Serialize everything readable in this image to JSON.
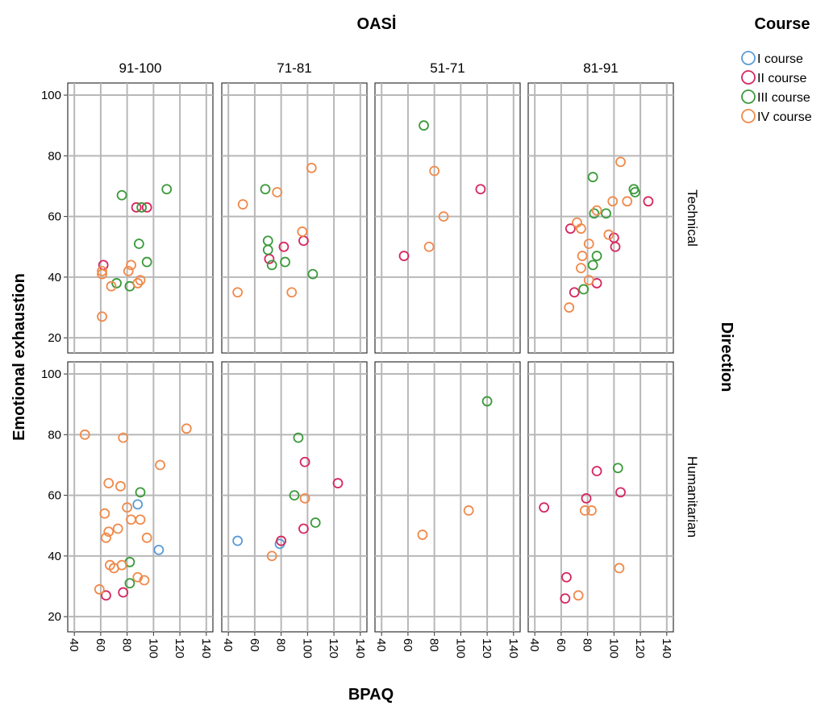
{
  "chart_data": {
    "type": "scatter",
    "title": "",
    "facet_col_title": "OASİ",
    "facet_row_title": "Direction",
    "xlabel": "BPAQ",
    "ylabel": "Emotional exhaustion",
    "columns": [
      "91-100",
      "71-81",
      "51-71",
      "81-91"
    ],
    "rows": [
      "Technical",
      "Humanitarian"
    ],
    "xlim": [
      35,
      145
    ],
    "ylim": [
      15,
      104
    ],
    "xticks": [
      40,
      60,
      80,
      100,
      120,
      140
    ],
    "yticks": [
      20,
      40,
      60,
      80,
      100
    ],
    "grid": true,
    "legend_title": "Course",
    "legend_position": "top-right",
    "series": [
      {
        "name": "I course",
        "color": "#5b9bd5"
      },
      {
        "name": "II course",
        "color": "#d6275e"
      },
      {
        "name": "III course",
        "color": "#3a9a3a"
      },
      {
        "name": "IV course",
        "color": "#f08a4b"
      }
    ],
    "points": [
      {
        "row": "Technical",
        "col": "91-100",
        "course": "II course",
        "x": 62,
        "y": 44
      },
      {
        "row": "Technical",
        "col": "91-100",
        "course": "II course",
        "x": 87,
        "y": 63
      },
      {
        "row": "Technical",
        "col": "91-100",
        "course": "II course",
        "x": 95,
        "y": 63
      },
      {
        "row": "Technical",
        "col": "91-100",
        "course": "III course",
        "x": 76,
        "y": 67
      },
      {
        "row": "Technical",
        "col": "91-100",
        "course": "III course",
        "x": 91,
        "y": 63
      },
      {
        "row": "Technical",
        "col": "91-100",
        "course": "III course",
        "x": 110,
        "y": 69
      },
      {
        "row": "Technical",
        "col": "91-100",
        "course": "III course",
        "x": 89,
        "y": 51
      },
      {
        "row": "Technical",
        "col": "91-100",
        "course": "III course",
        "x": 95,
        "y": 45
      },
      {
        "row": "Technical",
        "col": "91-100",
        "course": "III course",
        "x": 72,
        "y": 38
      },
      {
        "row": "Technical",
        "col": "91-100",
        "course": "III course",
        "x": 82,
        "y": 37
      },
      {
        "row": "Technical",
        "col": "91-100",
        "course": "IV course",
        "x": 61,
        "y": 42
      },
      {
        "row": "Technical",
        "col": "91-100",
        "course": "IV course",
        "x": 61,
        "y": 41
      },
      {
        "row": "Technical",
        "col": "91-100",
        "course": "IV course",
        "x": 83,
        "y": 44
      },
      {
        "row": "Technical",
        "col": "91-100",
        "course": "IV course",
        "x": 81,
        "y": 42
      },
      {
        "row": "Technical",
        "col": "91-100",
        "course": "IV course",
        "x": 68,
        "y": 37
      },
      {
        "row": "Technical",
        "col": "91-100",
        "course": "IV course",
        "x": 88,
        "y": 38
      },
      {
        "row": "Technical",
        "col": "91-100",
        "course": "IV course",
        "x": 90,
        "y": 39
      },
      {
        "row": "Technical",
        "col": "91-100",
        "course": "IV course",
        "x": 61,
        "y": 27
      },
      {
        "row": "Technical",
        "col": "71-81",
        "course": "II course",
        "x": 82,
        "y": 50
      },
      {
        "row": "Technical",
        "col": "71-81",
        "course": "II course",
        "x": 97,
        "y": 52
      },
      {
        "row": "Technical",
        "col": "71-81",
        "course": "II course",
        "x": 71,
        "y": 46
      },
      {
        "row": "Technical",
        "col": "71-81",
        "course": "III course",
        "x": 68,
        "y": 69
      },
      {
        "row": "Technical",
        "col": "71-81",
        "course": "III course",
        "x": 70,
        "y": 52
      },
      {
        "row": "Technical",
        "col": "71-81",
        "course": "III course",
        "x": 70,
        "y": 49
      },
      {
        "row": "Technical",
        "col": "71-81",
        "course": "III course",
        "x": 73,
        "y": 44
      },
      {
        "row": "Technical",
        "col": "71-81",
        "course": "III course",
        "x": 83,
        "y": 45
      },
      {
        "row": "Technical",
        "col": "71-81",
        "course": "III course",
        "x": 104,
        "y": 41
      },
      {
        "row": "Technical",
        "col": "71-81",
        "course": "IV course",
        "x": 51,
        "y": 64
      },
      {
        "row": "Technical",
        "col": "71-81",
        "course": "IV course",
        "x": 77,
        "y": 68
      },
      {
        "row": "Technical",
        "col": "71-81",
        "course": "IV course",
        "x": 103,
        "y": 76
      },
      {
        "row": "Technical",
        "col": "71-81",
        "course": "IV course",
        "x": 96,
        "y": 55
      },
      {
        "row": "Technical",
        "col": "71-81",
        "course": "IV course",
        "x": 47,
        "y": 35
      },
      {
        "row": "Technical",
        "col": "71-81",
        "course": "IV course",
        "x": 88,
        "y": 35
      },
      {
        "row": "Technical",
        "col": "51-71",
        "course": "II course",
        "x": 57,
        "y": 47
      },
      {
        "row": "Technical",
        "col": "51-71",
        "course": "II course",
        "x": 115,
        "y": 69
      },
      {
        "row": "Technical",
        "col": "51-71",
        "course": "III course",
        "x": 72,
        "y": 90
      },
      {
        "row": "Technical",
        "col": "51-71",
        "course": "IV course",
        "x": 80,
        "y": 75
      },
      {
        "row": "Technical",
        "col": "51-71",
        "course": "IV course",
        "x": 87,
        "y": 60
      },
      {
        "row": "Technical",
        "col": "51-71",
        "course": "IV course",
        "x": 76,
        "y": 50
      },
      {
        "row": "Technical",
        "col": "81-91",
        "course": "II course",
        "x": 67,
        "y": 56
      },
      {
        "row": "Technical",
        "col": "81-91",
        "course": "II course",
        "x": 100,
        "y": 53
      },
      {
        "row": "Technical",
        "col": "81-91",
        "course": "II course",
        "x": 101,
        "y": 50
      },
      {
        "row": "Technical",
        "col": "81-91",
        "course": "II course",
        "x": 126,
        "y": 65
      },
      {
        "row": "Technical",
        "col": "81-91",
        "course": "II course",
        "x": 70,
        "y": 35
      },
      {
        "row": "Technical",
        "col": "81-91",
        "course": "II course",
        "x": 87,
        "y": 38
      },
      {
        "row": "Technical",
        "col": "81-91",
        "course": "III course",
        "x": 84,
        "y": 73
      },
      {
        "row": "Technical",
        "col": "81-91",
        "course": "III course",
        "x": 85,
        "y": 61
      },
      {
        "row": "Technical",
        "col": "81-91",
        "course": "III course",
        "x": 94,
        "y": 61
      },
      {
        "row": "Technical",
        "col": "81-91",
        "course": "III course",
        "x": 115,
        "y": 69
      },
      {
        "row": "Technical",
        "col": "81-91",
        "course": "III course",
        "x": 116,
        "y": 68
      },
      {
        "row": "Technical",
        "col": "81-91",
        "course": "III course",
        "x": 87,
        "y": 47
      },
      {
        "row": "Technical",
        "col": "81-91",
        "course": "III course",
        "x": 84,
        "y": 44
      },
      {
        "row": "Technical",
        "col": "81-91",
        "course": "III course",
        "x": 77,
        "y": 36
      },
      {
        "row": "Technical",
        "col": "81-91",
        "course": "IV course",
        "x": 105,
        "y": 78
      },
      {
        "row": "Technical",
        "col": "81-91",
        "course": "IV course",
        "x": 72,
        "y": 58
      },
      {
        "row": "Technical",
        "col": "81-91",
        "course": "IV course",
        "x": 75,
        "y": 56
      },
      {
        "row": "Technical",
        "col": "81-91",
        "course": "IV course",
        "x": 87,
        "y": 62
      },
      {
        "row": "Technical",
        "col": "81-91",
        "course": "IV course",
        "x": 99,
        "y": 65
      },
      {
        "row": "Technical",
        "col": "81-91",
        "course": "IV course",
        "x": 110,
        "y": 65
      },
      {
        "row": "Technical",
        "col": "81-91",
        "course": "IV course",
        "x": 96,
        "y": 54
      },
      {
        "row": "Technical",
        "col": "81-91",
        "course": "IV course",
        "x": 81,
        "y": 51
      },
      {
        "row": "Technical",
        "col": "81-91",
        "course": "IV course",
        "x": 76,
        "y": 47
      },
      {
        "row": "Technical",
        "col": "81-91",
        "course": "IV course",
        "x": 75,
        "y": 43
      },
      {
        "row": "Technical",
        "col": "81-91",
        "course": "IV course",
        "x": 81,
        "y": 39
      },
      {
        "row": "Technical",
        "col": "81-91",
        "course": "IV course",
        "x": 66,
        "y": 30
      },
      {
        "row": "Humanitarian",
        "col": "91-100",
        "course": "I course",
        "x": 88,
        "y": 57
      },
      {
        "row": "Humanitarian",
        "col": "91-100",
        "course": "I course",
        "x": 104,
        "y": 42
      },
      {
        "row": "Humanitarian",
        "col": "91-100",
        "course": "II course",
        "x": 77,
        "y": 28
      },
      {
        "row": "Humanitarian",
        "col": "91-100",
        "course": "II course",
        "x": 64,
        "y": 27
      },
      {
        "row": "Humanitarian",
        "col": "91-100",
        "course": "III course",
        "x": 90,
        "y": 61
      },
      {
        "row": "Humanitarian",
        "col": "91-100",
        "course": "III course",
        "x": 82,
        "y": 38
      },
      {
        "row": "Humanitarian",
        "col": "91-100",
        "course": "III course",
        "x": 82,
        "y": 31
      },
      {
        "row": "Humanitarian",
        "col": "91-100",
        "course": "IV course",
        "x": 48,
        "y": 80
      },
      {
        "row": "Humanitarian",
        "col": "91-100",
        "course": "IV course",
        "x": 77,
        "y": 79
      },
      {
        "row": "Humanitarian",
        "col": "91-100",
        "course": "IV course",
        "x": 125,
        "y": 82
      },
      {
        "row": "Humanitarian",
        "col": "91-100",
        "course": "IV course",
        "x": 105,
        "y": 70
      },
      {
        "row": "Humanitarian",
        "col": "91-100",
        "course": "IV course",
        "x": 66,
        "y": 64
      },
      {
        "row": "Humanitarian",
        "col": "91-100",
        "course": "IV course",
        "x": 75,
        "y": 63
      },
      {
        "row": "Humanitarian",
        "col": "91-100",
        "course": "IV course",
        "x": 80,
        "y": 56
      },
      {
        "row": "Humanitarian",
        "col": "91-100",
        "course": "IV course",
        "x": 63,
        "y": 54
      },
      {
        "row": "Humanitarian",
        "col": "91-100",
        "course": "IV course",
        "x": 83,
        "y": 52
      },
      {
        "row": "Humanitarian",
        "col": "91-100",
        "course": "IV course",
        "x": 90,
        "y": 52
      },
      {
        "row": "Humanitarian",
        "col": "91-100",
        "course": "IV course",
        "x": 73,
        "y": 49
      },
      {
        "row": "Humanitarian",
        "col": "91-100",
        "course": "IV course",
        "x": 66,
        "y": 48
      },
      {
        "row": "Humanitarian",
        "col": "91-100",
        "course": "IV course",
        "x": 64,
        "y": 46
      },
      {
        "row": "Humanitarian",
        "col": "91-100",
        "course": "IV course",
        "x": 95,
        "y": 46
      },
      {
        "row": "Humanitarian",
        "col": "91-100",
        "course": "IV course",
        "x": 67,
        "y": 37
      },
      {
        "row": "Humanitarian",
        "col": "91-100",
        "course": "IV course",
        "x": 70,
        "y": 36
      },
      {
        "row": "Humanitarian",
        "col": "91-100",
        "course": "IV course",
        "x": 76,
        "y": 37
      },
      {
        "row": "Humanitarian",
        "col": "91-100",
        "course": "IV course",
        "x": 88,
        "y": 33
      },
      {
        "row": "Humanitarian",
        "col": "91-100",
        "course": "IV course",
        "x": 93,
        "y": 32
      },
      {
        "row": "Humanitarian",
        "col": "91-100",
        "course": "IV course",
        "x": 59,
        "y": 29
      },
      {
        "row": "Humanitarian",
        "col": "71-81",
        "course": "I course",
        "x": 47,
        "y": 45
      },
      {
        "row": "Humanitarian",
        "col": "71-81",
        "course": "I course",
        "x": 79,
        "y": 44
      },
      {
        "row": "Humanitarian",
        "col": "71-81",
        "course": "II course",
        "x": 98,
        "y": 71
      },
      {
        "row": "Humanitarian",
        "col": "71-81",
        "course": "II course",
        "x": 123,
        "y": 64
      },
      {
        "row": "Humanitarian",
        "col": "71-81",
        "course": "II course",
        "x": 97,
        "y": 49
      },
      {
        "row": "Humanitarian",
        "col": "71-81",
        "course": "II course",
        "x": 80,
        "y": 45
      },
      {
        "row": "Humanitarian",
        "col": "71-81",
        "course": "III course",
        "x": 93,
        "y": 79
      },
      {
        "row": "Humanitarian",
        "col": "71-81",
        "course": "III course",
        "x": 90,
        "y": 60
      },
      {
        "row": "Humanitarian",
        "col": "71-81",
        "course": "III course",
        "x": 106,
        "y": 51
      },
      {
        "row": "Humanitarian",
        "col": "71-81",
        "course": "IV course",
        "x": 98,
        "y": 59
      },
      {
        "row": "Humanitarian",
        "col": "71-81",
        "course": "IV course",
        "x": 73,
        "y": 40
      },
      {
        "row": "Humanitarian",
        "col": "51-71",
        "course": "III course",
        "x": 120,
        "y": 91
      },
      {
        "row": "Humanitarian",
        "col": "51-71",
        "course": "IV course",
        "x": 106,
        "y": 55
      },
      {
        "row": "Humanitarian",
        "col": "51-71",
        "course": "IV course",
        "x": 71,
        "y": 47
      },
      {
        "row": "Humanitarian",
        "col": "81-91",
        "course": "II course",
        "x": 47,
        "y": 56
      },
      {
        "row": "Humanitarian",
        "col": "81-91",
        "course": "II course",
        "x": 87,
        "y": 68
      },
      {
        "row": "Humanitarian",
        "col": "81-91",
        "course": "II course",
        "x": 105,
        "y": 61
      },
      {
        "row": "Humanitarian",
        "col": "81-91",
        "course": "II course",
        "x": 79,
        "y": 59
      },
      {
        "row": "Humanitarian",
        "col": "81-91",
        "course": "II course",
        "x": 64,
        "y": 33
      },
      {
        "row": "Humanitarian",
        "col": "81-91",
        "course": "II course",
        "x": 63,
        "y": 26
      },
      {
        "row": "Humanitarian",
        "col": "81-91",
        "course": "III course",
        "x": 103,
        "y": 69
      },
      {
        "row": "Humanitarian",
        "col": "81-91",
        "course": "IV course",
        "x": 78,
        "y": 55
      },
      {
        "row": "Humanitarian",
        "col": "81-91",
        "course": "IV course",
        "x": 83,
        "y": 55
      },
      {
        "row": "Humanitarian",
        "col": "81-91",
        "course": "IV course",
        "x": 104,
        "y": 36
      },
      {
        "row": "Humanitarian",
        "col": "81-91",
        "course": "IV course",
        "x": 73,
        "y": 27
      }
    ]
  }
}
